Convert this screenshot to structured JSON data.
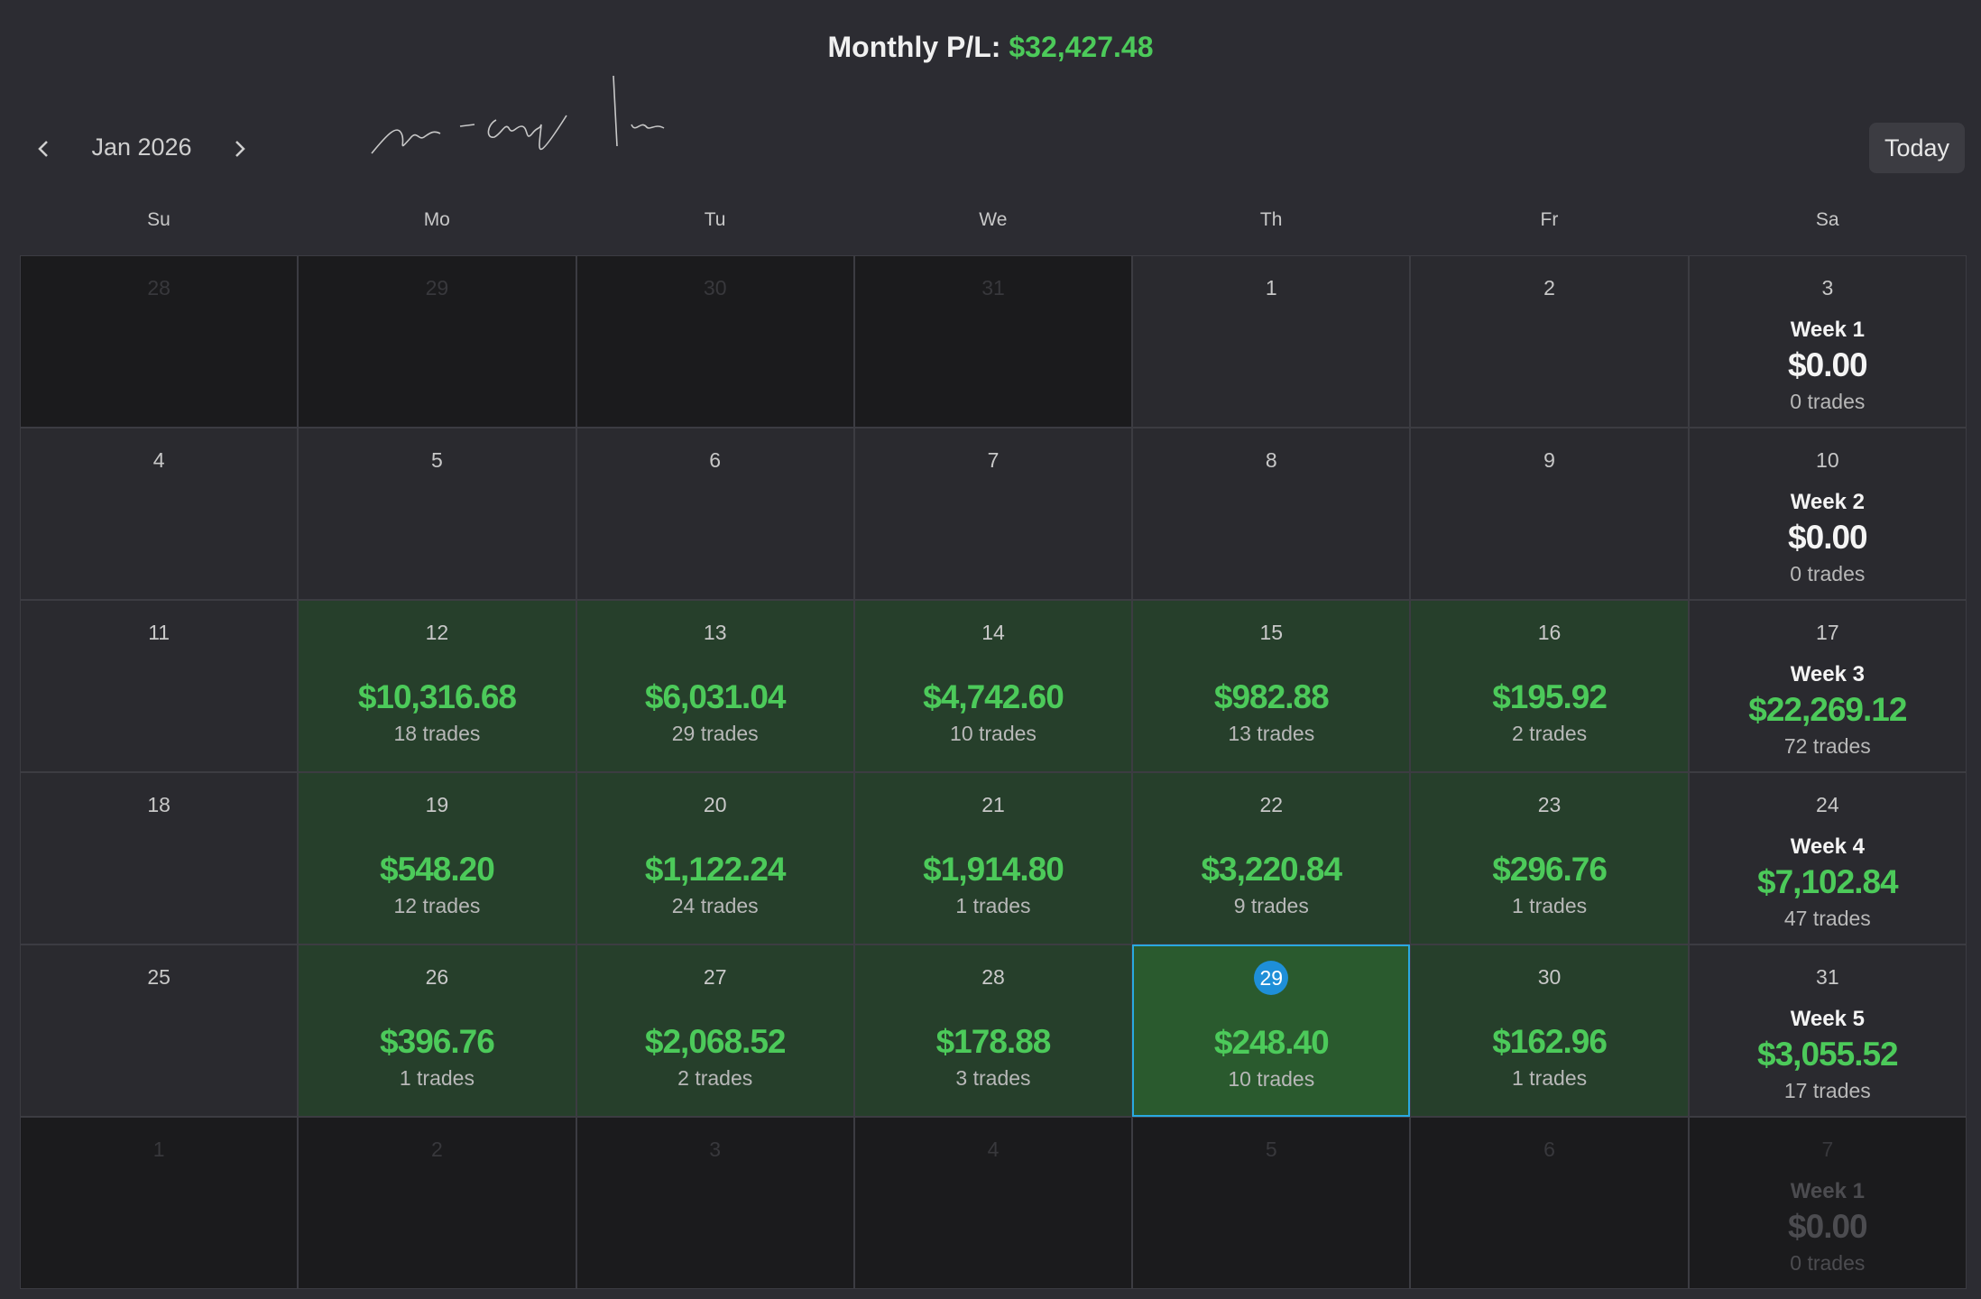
{
  "header": {
    "label": "Monthly P/L:",
    "value": "$32,427.48"
  },
  "nav": {
    "month": "Jan 2026",
    "today": "Today"
  },
  "weekdays": [
    "Su",
    "Mo",
    "Tu",
    "We",
    "Th",
    "Fr",
    "Sa"
  ],
  "weeks": [
    {
      "days": [
        {
          "day": "28",
          "outside": true
        },
        {
          "day": "29",
          "outside": true
        },
        {
          "day": "30",
          "outside": true
        },
        {
          "day": "31",
          "outside": true
        },
        {
          "day": "1"
        },
        {
          "day": "2"
        },
        {
          "day": "3"
        }
      ],
      "summary": {
        "label": "Week 1",
        "pl": "$0.00",
        "trades": "0 trades"
      }
    },
    {
      "days": [
        {
          "day": "4"
        },
        {
          "day": "5"
        },
        {
          "day": "6"
        },
        {
          "day": "7"
        },
        {
          "day": "8"
        },
        {
          "day": "9"
        },
        {
          "day": "10"
        }
      ],
      "summary": {
        "label": "Week 2",
        "pl": "$0.00",
        "trades": "0 trades"
      }
    },
    {
      "days": [
        {
          "day": "11"
        },
        {
          "day": "12",
          "pl": "$10,316.68",
          "trades": "18 trades"
        },
        {
          "day": "13",
          "pl": "$6,031.04",
          "trades": "29 trades"
        },
        {
          "day": "14",
          "pl": "$4,742.60",
          "trades": "10 trades"
        },
        {
          "day": "15",
          "pl": "$982.88",
          "trades": "13 trades"
        },
        {
          "day": "16",
          "pl": "$195.92",
          "trades": "2 trades"
        },
        {
          "day": "17"
        }
      ],
      "summary": {
        "label": "Week 3",
        "pl": "$22,269.12",
        "trades": "72 trades"
      }
    },
    {
      "days": [
        {
          "day": "18"
        },
        {
          "day": "19",
          "pl": "$548.20",
          "trades": "12 trades"
        },
        {
          "day": "20",
          "pl": "$1,122.24",
          "trades": "24 trades"
        },
        {
          "day": "21",
          "pl": "$1,914.80",
          "trades": "1 trades"
        },
        {
          "day": "22",
          "pl": "$3,220.84",
          "trades": "9 trades"
        },
        {
          "day": "23",
          "pl": "$296.76",
          "trades": "1 trades"
        },
        {
          "day": "24"
        }
      ],
      "summary": {
        "label": "Week 4",
        "pl": "$7,102.84",
        "trades": "47 trades"
      }
    },
    {
      "days": [
        {
          "day": "25"
        },
        {
          "day": "26",
          "pl": "$396.76",
          "trades": "1 trades"
        },
        {
          "day": "27",
          "pl": "$2,068.52",
          "trades": "2 trades"
        },
        {
          "day": "28",
          "pl": "$178.88",
          "trades": "3 trades"
        },
        {
          "day": "29",
          "pl": "$248.40",
          "trades": "10 trades",
          "today": true
        },
        {
          "day": "30",
          "pl": "$162.96",
          "trades": "1 trades"
        },
        {
          "day": "31"
        }
      ],
      "summary": {
        "label": "Week 5",
        "pl": "$3,055.52",
        "trades": "17 trades"
      }
    },
    {
      "days": [
        {
          "day": "1",
          "outside": true
        },
        {
          "day": "2",
          "outside": true
        },
        {
          "day": "3",
          "outside": true
        },
        {
          "day": "4",
          "outside": true
        },
        {
          "day": "5",
          "outside": true
        },
        {
          "day": "6",
          "outside": true
        },
        {
          "day": "7",
          "outside": true
        }
      ],
      "summary": {
        "label": "Week 1",
        "pl": "$0.00",
        "trades": "0 trades"
      }
    }
  ]
}
